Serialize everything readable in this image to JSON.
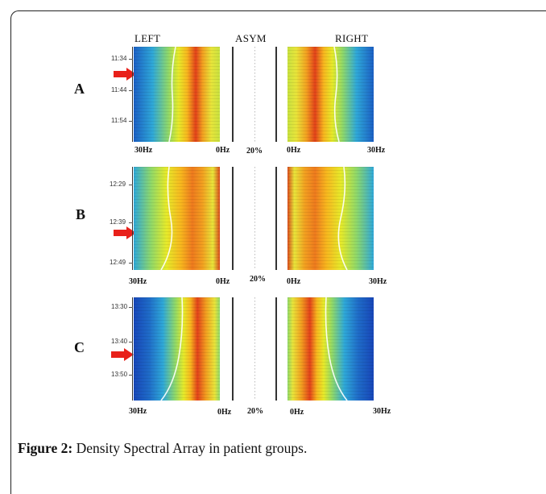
{
  "figure": {
    "caption_label": "Figure 2:",
    "caption_text": "Density Spectral Array in patient groups."
  },
  "header": {
    "left": "LEFT",
    "center": "ASYM",
    "right": "RIGHT"
  },
  "colors": {
    "arrow": "#e8201a",
    "hot": "#e2421a",
    "warm": "#f2d21e",
    "mid": "#b8e23a",
    "cool": "#2fa8d8",
    "cold": "#1746b8"
  },
  "panels": [
    {
      "group": "A",
      "times": [
        "11:34",
        "11:44",
        "11:54"
      ],
      "axis": {
        "left_max": "30Hz",
        "left_min": "0Hz",
        "asym": "20%",
        "right_min": "0Hz",
        "right_max": "30Hz"
      }
    },
    {
      "group": "B",
      "times": [
        "12:29",
        "12:39",
        "12:49"
      ],
      "axis": {
        "left_max": "30Hz",
        "left_min": "0Hz",
        "asym": "20%",
        "right_min": "0Hz",
        "right_max": "30Hz"
      }
    },
    {
      "group": "C",
      "times": [
        "13:30",
        "13:40",
        "13:50"
      ],
      "axis": {
        "left_max": "30Hz",
        "left_min": "0Hz",
        "asym": "20%",
        "right_min": "0Hz",
        "right_max": "30Hz"
      }
    }
  ]
}
